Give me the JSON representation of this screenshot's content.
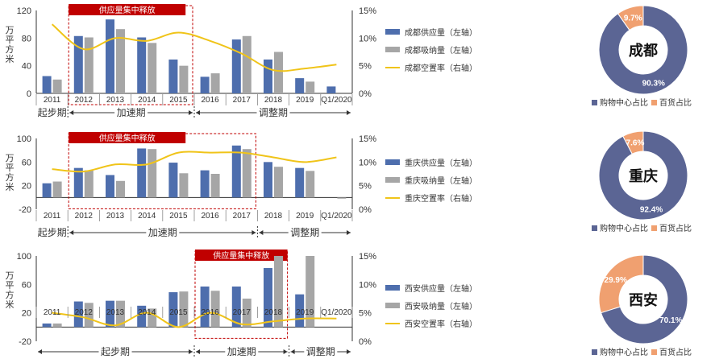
{
  "colors": {
    "supply": "#4E6EAD",
    "absorb": "#A6A6A6",
    "vacancy": "#F0C419",
    "highlight_box": "#C00000",
    "mall": "#5B6594",
    "dept": "#F0A070",
    "axis": "#333333"
  },
  "period_labels": {
    "start": "起步期",
    "accel": "加速期",
    "adjust": "调整期"
  },
  "legend_common": {
    "mall": "购物中心占比",
    "dept": "百货占比"
  },
  "chart_data": [
    {
      "type": "bar",
      "city": "成都",
      "ylabel": "万平方米",
      "ylim": [
        0,
        120
      ],
      "yticks": [
        "0",
        "40",
        "80",
        "120"
      ],
      "y2lim": [
        0,
        15
      ],
      "y2ticks": [
        "0%",
        "5%",
        "10%",
        "15%"
      ],
      "categories": [
        "2011",
        "2012",
        "2013",
        "2014",
        "2015",
        "2016",
        "2017",
        "2018",
        "2019",
        "Q1/2020"
      ],
      "series": [
        {
          "name": "成都供应量（左轴）",
          "values": [
            25,
            83,
            107,
            81,
            49,
            24,
            78,
            49,
            22,
            10
          ]
        },
        {
          "name": "成都吸纳量（左轴）",
          "values": [
            20,
            81,
            93,
            73,
            40,
            29,
            83,
            60,
            17,
            null
          ]
        },
        {
          "name": "成都空置率（右轴）",
          "axis": "right",
          "values": [
            12.5,
            8.0,
            10.0,
            9.5,
            11.0,
            9.5,
            7.2,
            4.2,
            4.5,
            5.2
          ]
        }
      ],
      "highlight_label": "供应量集中释放",
      "highlight_range": [
        "2012",
        "2015"
      ],
      "periods": [
        {
          "label_key": "start",
          "range": [
            "2011",
            "2011"
          ]
        },
        {
          "label_key": "accel",
          "range": [
            "2012",
            "2015"
          ]
        },
        {
          "label_key": "adjust",
          "range": [
            "2016",
            "Q1/2020"
          ]
        }
      ],
      "donut": {
        "center": "成都",
        "mall_pct": "90.3%",
        "dept_pct": "9.7%",
        "mall": 90.3,
        "dept": 9.7
      }
    },
    {
      "type": "bar",
      "city": "重庆",
      "ylabel": "万平方米",
      "ylim": [
        -20,
        100
      ],
      "yticks": [
        "-20",
        "20",
        "60",
        "100"
      ],
      "y2lim": [
        0,
        15
      ],
      "y2ticks": [
        "0%",
        "5%",
        "10%",
        "15%"
      ],
      "categories": [
        "2011",
        "2012",
        "2013",
        "2014",
        "2015",
        "2016",
        "2017",
        "2018",
        "2019",
        "Q1/2020"
      ],
      "series": [
        {
          "name": "重庆供应量（左轴）",
          "values": [
            24,
            50,
            38,
            83,
            59,
            46,
            88,
            60,
            50,
            null
          ]
        },
        {
          "name": "重庆吸纳量（左轴）",
          "values": [
            27,
            46,
            28,
            82,
            41,
            40,
            82,
            52,
            45,
            -2
          ]
        },
        {
          "name": "重庆空置率（右轴）",
          "axis": "right",
          "values": [
            8.5,
            8.0,
            9.5,
            9.5,
            12.0,
            12.0,
            12.0,
            11.0,
            10.0,
            11.0
          ]
        }
      ],
      "highlight_label": "供应量集中释放",
      "highlight_range": [
        "2012",
        "2017"
      ],
      "periods": [
        {
          "label_key": "start",
          "range": [
            "2011",
            "2011"
          ]
        },
        {
          "label_key": "accel",
          "range": [
            "2012",
            "2017"
          ]
        },
        {
          "label_key": "adjust",
          "range": [
            "2018",
            "Q1/2020"
          ]
        }
      ],
      "donut": {
        "center": "重庆",
        "mall_pct": "92.4%",
        "dept_pct": "7.6%",
        "mall": 92.4,
        "dept": 7.6
      }
    },
    {
      "type": "bar",
      "city": "西安",
      "ylabel": "万平方米",
      "ylim": [
        -20,
        100
      ],
      "yticks": [
        "-20",
        "20",
        "60",
        "100"
      ],
      "y2lim": [
        0,
        15
      ],
      "y2ticks": [
        "0%",
        "5%",
        "10%",
        "15%"
      ],
      "categories": [
        "2011",
        "2012",
        "2013",
        "2014",
        "2015",
        "2016",
        "2017",
        "2018",
        "2019",
        "Q1/2020"
      ],
      "series": [
        {
          "name": "西安供应量（左轴）",
          "values": [
            5,
            36,
            37,
            30,
            49,
            57,
            57,
            83,
            46,
            null
          ]
        },
        {
          "name": "西安吸纳量（左轴）",
          "values": [
            5,
            34,
            37,
            26,
            50,
            51,
            40,
            100,
            100,
            null
          ]
        },
        {
          "name": "西安空置率（右轴）",
          "axis": "right",
          "values": [
            5.0,
            4.2,
            2.8,
            5.0,
            2.5,
            5.0,
            3.0,
            3.5,
            4.0,
            4.0
          ]
        }
      ],
      "highlight_label": "供应量集中释放",
      "highlight_range": [
        "2016",
        "2018"
      ],
      "periods": [
        {
          "label_key": "start",
          "range": [
            "2011",
            "2015"
          ]
        },
        {
          "label_key": "accel",
          "range": [
            "2016",
            "2018"
          ]
        },
        {
          "label_key": "adjust",
          "range": [
            "2019",
            "Q1/2020"
          ]
        }
      ],
      "donut": {
        "center": "西安",
        "mall_pct": "70.1%",
        "dept_pct": "29.9%",
        "mall": 70.1,
        "dept": 29.9
      }
    }
  ]
}
